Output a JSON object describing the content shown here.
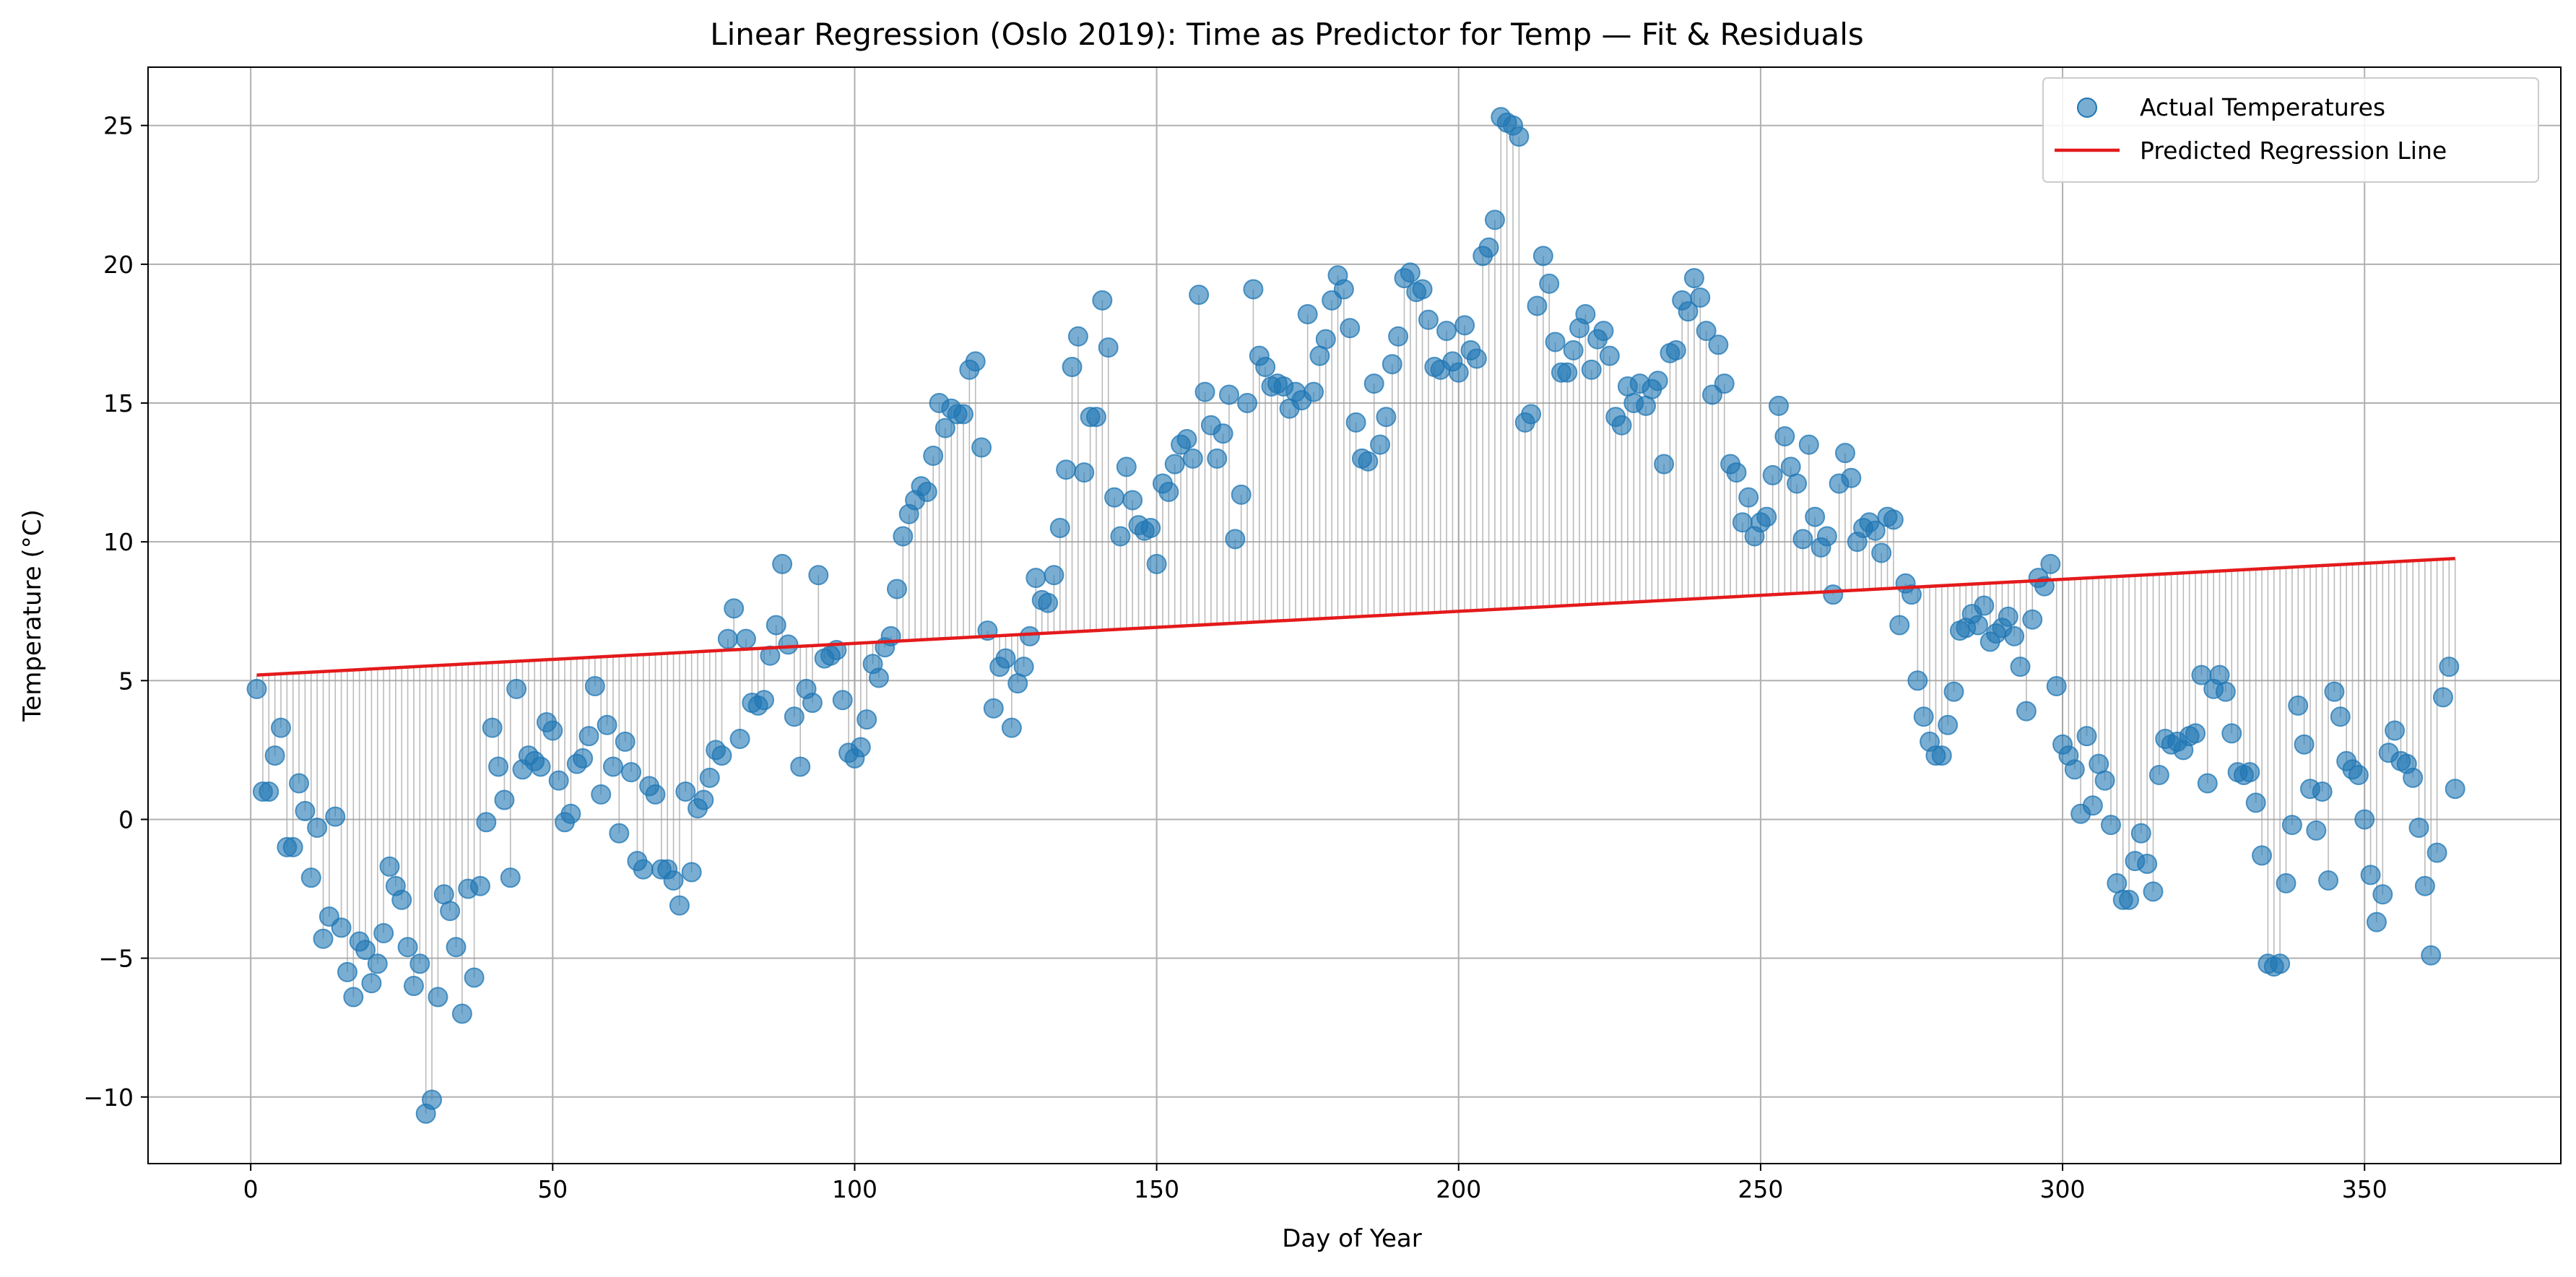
{
  "chart_data": {
    "type": "scatter",
    "title": "Linear Regression (Oslo 2019): Time as Predictor for Temp — Fit & Residuals",
    "xlabel": "Day of Year",
    "ylabel": "Temperature (°C)",
    "xlim": [
      -17,
      382.5
    ],
    "ylim": [
      -12.4,
      27.1
    ],
    "xticks": [
      0,
      50,
      100,
      150,
      200,
      250,
      300,
      350
    ],
    "yticks": [
      -10,
      -5,
      0,
      5,
      10,
      15,
      20,
      25
    ],
    "grid": true,
    "legend_position": "top-right",
    "colors": {
      "scatter": "#1f77b4",
      "line": "#e41a1c",
      "residual": "#9e9e9e",
      "grid": "#b0b0b0"
    },
    "legend": [
      "Actual Temperatures",
      "Predicted Regression Line"
    ],
    "regression_line": {
      "name": "Predicted Regression Line",
      "x": [
        1,
        365
      ],
      "y": [
        5.2,
        9.4
      ]
    },
    "series": [
      {
        "name": "Actual Temperatures",
        "x": [
          1,
          2,
          3,
          4,
          5,
          6,
          7,
          8,
          9,
          10,
          11,
          12,
          13,
          14,
          15,
          16,
          17,
          18,
          19,
          20,
          21,
          22,
          23,
          24,
          25,
          26,
          27,
          28,
          29,
          30,
          31,
          32,
          33,
          34,
          35,
          36,
          37,
          38,
          39,
          40,
          41,
          42,
          43,
          44,
          45,
          46,
          47,
          48,
          49,
          50,
          51,
          52,
          53,
          54,
          55,
          56,
          57,
          58,
          59,
          60,
          61,
          62,
          63,
          64,
          65,
          66,
          67,
          68,
          69,
          70,
          71,
          72,
          73,
          74,
          75,
          76,
          77,
          78,
          79,
          80,
          81,
          82,
          83,
          84,
          85,
          86,
          87,
          88,
          89,
          90,
          91,
          92,
          93,
          94,
          95,
          96,
          97,
          98,
          99,
          100,
          101,
          102,
          103,
          104,
          105,
          106,
          107,
          108,
          109,
          110,
          111,
          112,
          113,
          114,
          115,
          116,
          117,
          118,
          119,
          120,
          121,
          122,
          123,
          124,
          125,
          126,
          127,
          128,
          129,
          130,
          131,
          132,
          133,
          134,
          135,
          136,
          137,
          138,
          139,
          140,
          141,
          142,
          143,
          144,
          145,
          146,
          147,
          148,
          149,
          150,
          151,
          152,
          153,
          154,
          155,
          156,
          157,
          158,
          159,
          160,
          161,
          162,
          163,
          164,
          165,
          166,
          167,
          168,
          169,
          170,
          171,
          172,
          173,
          174,
          175,
          176,
          177,
          178,
          179,
          180,
          181,
          182,
          183,
          184,
          185,
          186,
          187,
          188,
          189,
          190,
          191,
          192,
          193,
          194,
          195,
          196,
          197,
          198,
          199,
          200,
          201,
          202,
          203,
          204,
          205,
          206,
          207,
          208,
          209,
          210,
          211,
          212,
          213,
          214,
          215,
          216,
          217,
          218,
          219,
          220,
          221,
          222,
          223,
          224,
          225,
          226,
          227,
          228,
          229,
          230,
          231,
          232,
          233,
          234,
          235,
          236,
          237,
          238,
          239,
          240,
          241,
          242,
          243,
          244,
          245,
          246,
          247,
          248,
          249,
          250,
          251,
          252,
          253,
          254,
          255,
          256,
          257,
          258,
          259,
          260,
          261,
          262,
          263,
          264,
          265,
          266,
          267,
          268,
          269,
          270,
          271,
          272,
          273,
          274,
          275,
          276,
          277,
          278,
          279,
          280,
          281,
          282,
          283,
          284,
          285,
          286,
          287,
          288,
          289,
          290,
          291,
          292,
          293,
          294,
          295,
          296,
          297,
          298,
          299,
          300,
          301,
          302,
          303,
          304,
          305,
          306,
          307,
          308,
          309,
          310,
          311,
          312,
          313,
          314,
          315,
          316,
          317,
          318,
          319,
          320,
          321,
          322,
          323,
          324,
          325,
          326,
          327,
          328,
          329,
          330,
          331,
          332,
          333,
          334,
          335,
          336,
          337,
          338,
          339,
          340,
          341,
          342,
          343,
          344,
          345,
          346,
          347,
          348,
          349,
          350,
          351,
          352,
          353,
          354,
          355,
          356,
          357,
          358,
          359,
          360,
          361,
          362,
          363,
          364,
          365
        ],
        "y": [
          4.7,
          1.0,
          1.0,
          2.3,
          3.3,
          -1.0,
          -1.0,
          1.3,
          0.3,
          -2.1,
          -0.3,
          -4.3,
          -3.5,
          0.1,
          -3.9,
          -5.5,
          -6.4,
          -4.4,
          -4.7,
          -5.9,
          -5.2,
          -4.1,
          -1.7,
          -2.4,
          -2.9,
          -4.6,
          -6.0,
          -5.2,
          -10.6,
          -10.1,
          -6.4,
          -2.7,
          -3.3,
          -4.6,
          -7.0,
          -2.5,
          -5.7,
          -2.4,
          -0.1,
          3.3,
          1.9,
          0.7,
          -2.1,
          4.7,
          1.8,
          2.3,
          2.1,
          1.9,
          3.5,
          3.2,
          1.4,
          -0.1,
          0.2,
          2.0,
          2.2,
          3.0,
          4.8,
          0.9,
          3.4,
          1.9,
          -0.5,
          2.8,
          1.7,
          -1.5,
          -1.8,
          1.2,
          0.9,
          -1.8,
          -1.8,
          -2.2,
          -3.1,
          1.0,
          -1.9,
          0.4,
          0.7,
          1.5,
          2.5,
          2.3,
          6.5,
          7.6,
          2.9,
          6.5,
          4.2,
          4.1,
          4.3,
          5.9,
          7.0,
          9.2,
          6.3,
          3.7,
          1.9,
          4.7,
          4.2,
          8.8,
          5.8,
          5.9,
          6.1,
          4.3,
          2.4,
          2.2,
          2.6,
          3.6,
          5.6,
          5.1,
          6.2,
          6.6,
          8.3,
          10.2,
          11.0,
          11.5,
          12.0,
          11.8,
          13.1,
          15.0,
          14.1,
          14.8,
          14.6,
          14.6,
          16.2,
          16.5,
          13.4,
          6.8,
          4.0,
          5.5,
          5.8,
          3.3,
          4.9,
          5.5,
          6.6,
          8.7,
          7.9,
          7.8,
          8.8,
          10.5,
          12.6,
          16.3,
          17.4,
          12.5,
          14.5,
          14.5,
          18.7,
          17.0,
          11.6,
          10.2,
          12.7,
          11.5,
          10.6,
          10.4,
          10.5,
          9.2,
          12.1,
          11.8,
          12.8,
          13.5,
          13.7,
          13.0,
          18.9,
          15.4,
          14.2,
          13.0,
          13.9,
          15.3,
          10.1,
          11.7,
          15.0,
          19.1,
          16.7,
          16.3,
          15.6,
          15.7,
          15.6,
          14.8,
          15.4,
          15.1,
          18.2,
          15.4,
          16.7,
          17.3,
          18.7,
          19.6,
          19.1,
          17.7,
          14.3,
          13.0,
          12.9,
          15.7,
          13.5,
          14.5,
          16.4,
          17.4,
          19.5,
          19.7,
          19.0,
          19.1,
          18.0,
          16.3,
          16.2,
          17.6,
          16.5,
          16.1,
          17.8,
          16.9,
          16.6,
          20.3,
          20.6,
          21.6,
          25.3,
          25.1,
          25.0,
          24.6,
          14.3,
          14.6,
          18.5,
          20.3,
          19.3,
          17.2,
          16.1,
          16.1,
          16.9,
          17.7,
          18.2,
          16.2,
          17.3,
          17.6,
          16.7,
          14.5,
          14.2,
          15.6,
          15.0,
          15.7,
          14.9,
          15.5,
          15.8,
          12.8,
          16.8,
          16.9,
          18.7,
          18.3,
          19.5,
          18.8,
          17.6,
          15.3,
          17.1,
          15.7,
          12.8,
          12.5,
          10.7,
          11.6,
          10.2,
          10.7,
          10.9,
          12.4,
          14.9,
          13.8,
          12.7,
          12.1,
          10.1,
          13.5,
          10.9,
          9.8,
          10.2,
          8.1,
          12.1,
          13.2,
          12.3,
          10.0,
          10.5,
          10.7,
          10.4,
          9.6,
          10.9,
          10.8,
          7.0,
          8.5,
          8.1,
          5.0,
          3.7,
          2.8,
          2.3,
          2.3,
          3.4,
          4.6,
          6.8,
          6.9,
          7.4,
          7.0,
          7.7,
          6.4,
          6.7,
          6.9,
          7.3,
          6.6,
          5.5,
          3.9,
          7.2,
          8.7,
          8.4,
          9.2,
          4.8,
          2.7,
          2.3,
          1.8,
          0.2,
          3.0,
          0.5,
          2.0,
          1.4,
          -0.2,
          -2.3,
          -2.9,
          -2.9,
          -1.5,
          -0.5,
          -1.6,
          -2.6,
          1.6,
          2.9,
          2.7,
          2.8,
          2.5,
          3.0,
          3.1,
          5.2,
          1.3,
          4.7,
          5.2,
          4.6,
          3.1,
          1.7,
          1.6,
          1.7,
          0.6,
          -1.3,
          -5.2,
          -5.3,
          -5.2,
          -2.3,
          -0.2,
          4.1,
          2.7,
          1.1,
          -0.4,
          1.0,
          -2.2,
          4.6,
          3.7,
          2.1,
          1.8,
          1.6,
          0.0,
          -2.0,
          -3.7,
          -2.7,
          2.4,
          3.2,
          2.1,
          2.0,
          1.5,
          -0.3,
          -2.4,
          -4.9,
          -1.2,
          4.4,
          5.5,
          1.1
        ]
      }
    ]
  }
}
